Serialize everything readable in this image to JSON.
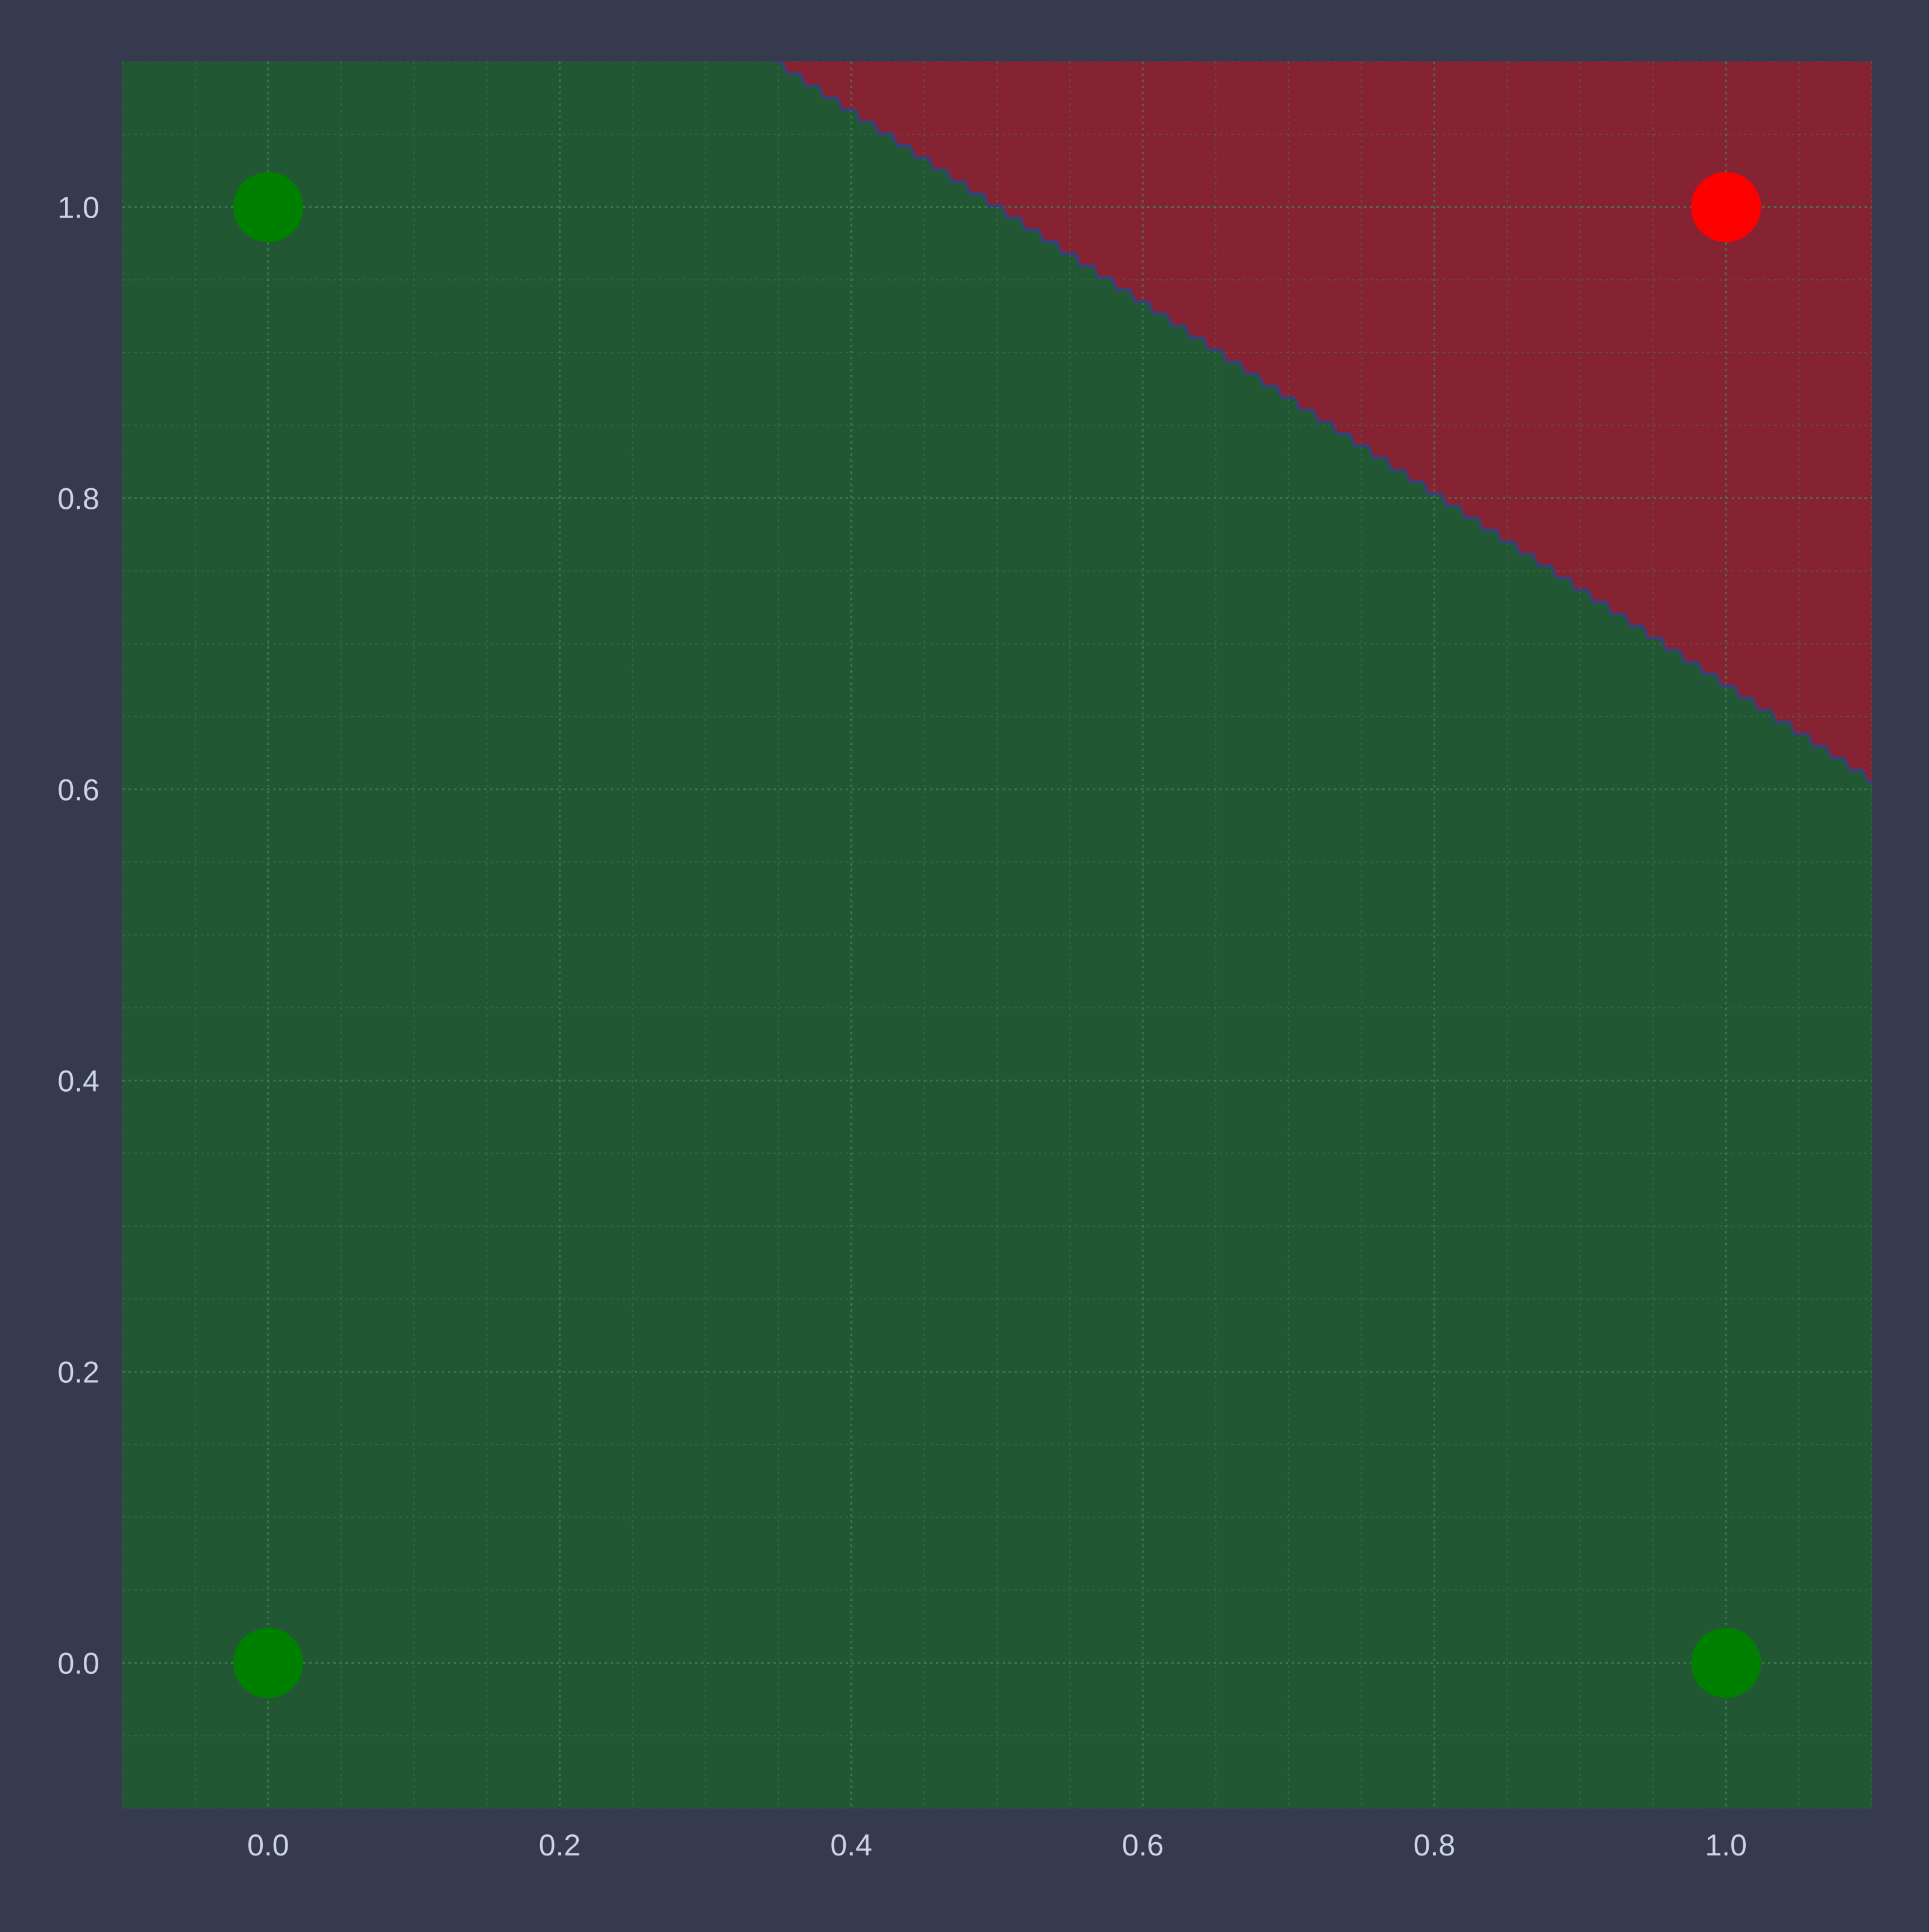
{
  "chart_data": {
    "type": "scatter",
    "title": "",
    "xlabel": "",
    "ylabel": "",
    "xlim": [
      -0.1,
      1.1
    ],
    "ylim": [
      -0.1,
      1.1
    ],
    "x_ticks": [
      0.0,
      0.2,
      0.4,
      0.6,
      0.8,
      1.0
    ],
    "y_ticks": [
      0.0,
      0.2,
      0.4,
      0.6,
      0.8,
      1.0
    ],
    "x_tick_labels": [
      "0.0",
      "0.2",
      "0.4",
      "0.6",
      "0.8",
      "1.0"
    ],
    "y_tick_labels": [
      "0.0",
      "0.2",
      "0.4",
      "0.6",
      "0.8",
      "1.0"
    ],
    "grid": true,
    "minor_grid": true,
    "points": [
      {
        "x": 0,
        "y": 0,
        "class": 0
      },
      {
        "x": 0,
        "y": 1,
        "class": 0
      },
      {
        "x": 1,
        "y": 0,
        "class": 0
      },
      {
        "x": 1,
        "y": 1,
        "class": 1
      }
    ],
    "decision_boundary": [
      {
        "x": 0.346,
        "y": 1.1
      },
      {
        "x": 1.1,
        "y": 0.605
      }
    ],
    "regions": [
      {
        "class": 0,
        "side": "below-left"
      },
      {
        "class": 1,
        "side": "above-right"
      }
    ],
    "colors": {
      "background": "#353a4e",
      "class0_region": "#215733",
      "class1_region": "#852332",
      "class0_point": "#008000",
      "class1_point": "#ff0000",
      "boundary_line": "#3a3f7a",
      "grid": "#3f8552",
      "tick_label": "#cdd3e6"
    }
  }
}
